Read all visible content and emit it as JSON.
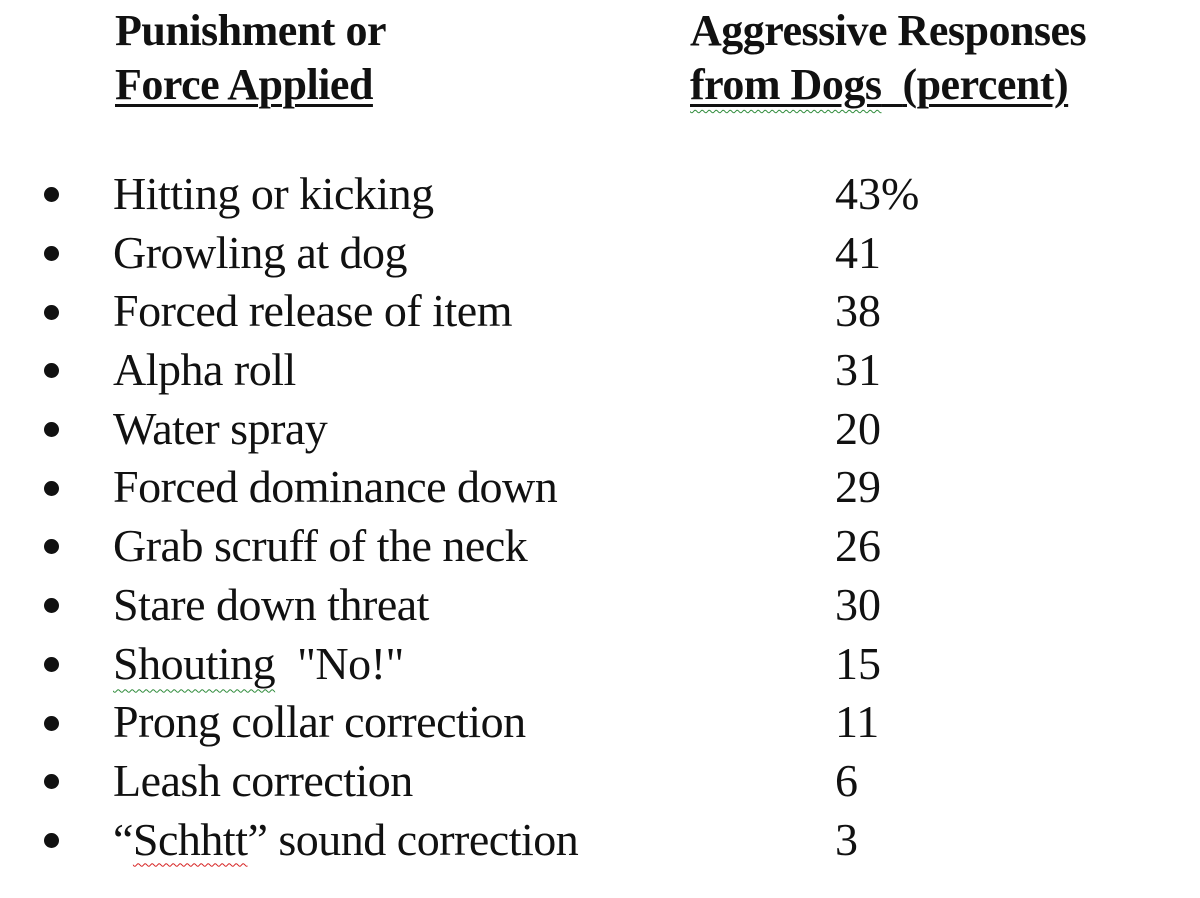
{
  "header": {
    "left_line1": "Punishment or",
    "left_line2": "Force Applied",
    "right_line1": "Aggressive Responses",
    "right_line2_word1": "from Dogs",
    "right_line2_rest": "(percent)"
  },
  "rows": [
    {
      "label": "Hitting or kicking",
      "value": "43%"
    },
    {
      "label": "Growling at dog",
      "value": "41"
    },
    {
      "label": "Forced release of item",
      "value": "38"
    },
    {
      "label": "Alpha roll",
      "value": "31"
    },
    {
      "label": "Water spray",
      "value": "20"
    },
    {
      "label": "Forced dominance down",
      "value": "29"
    },
    {
      "label": "Grab scruff of the neck",
      "value": "26"
    },
    {
      "label": "Stare down threat",
      "value": "30"
    },
    {
      "label_squiggle": "Shouting",
      "label_rest": "\"No!\"",
      "value": "15"
    },
    {
      "label": "Prong collar correction",
      "value": "11"
    },
    {
      "label": "Leash correction",
      "value": "6"
    },
    {
      "label_quote_open": "“",
      "label_squiggle": "Schhtt",
      "label_rest": "” sound correction",
      "value": "3"
    }
  ],
  "colors": {
    "text": "#111111",
    "spellcheck_green": "#2e8b3a",
    "spellcheck_red": "#d62020"
  }
}
